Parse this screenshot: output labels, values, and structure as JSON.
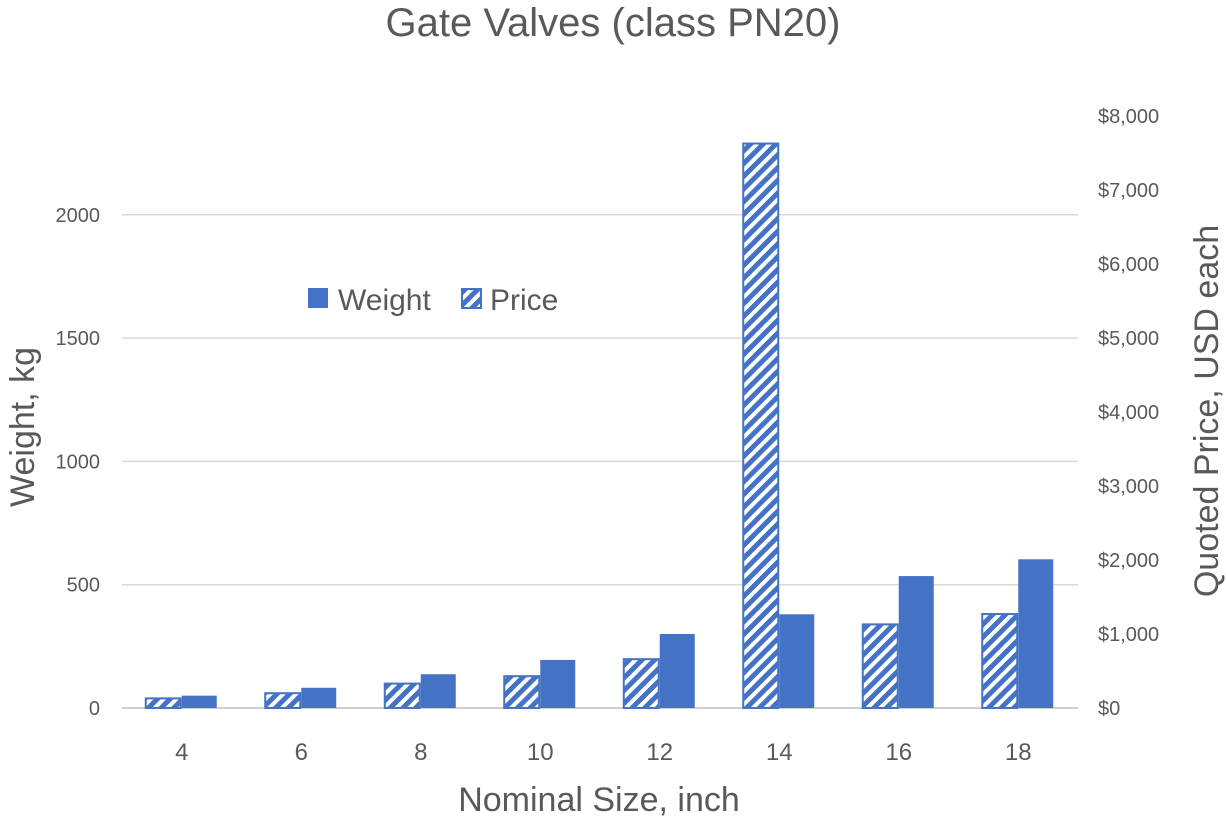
{
  "chart_data": {
    "type": "bar",
    "title": "Gate Valves (class PN20)",
    "xlabel": "Nominal Size, inch",
    "ylabel": "Weight, kg",
    "y2label": "Quoted Price, USD each",
    "categories": [
      "4",
      "6",
      "8",
      "10",
      "12",
      "14",
      "16",
      "18"
    ],
    "series": [
      {
        "name": "Price",
        "axis": "right",
        "pattern": "hatched",
        "color": "#4472C4",
        "values": [
          130,
          200,
          330,
          430,
          660,
          7630,
          1130,
          1270
        ]
      },
      {
        "name": "Weight",
        "axis": "left",
        "pattern": "solid",
        "color": "#4472C4",
        "values": [
          50,
          82,
          137,
          195,
          300,
          380,
          535,
          603
        ]
      }
    ],
    "legend_order": [
      "Weight",
      "Price"
    ],
    "ylim": [
      0,
      2400
    ],
    "y_ticks": [
      0,
      500,
      1000,
      1500,
      2000
    ],
    "y_tick_labels": [
      "0",
      "500",
      "1000",
      "1500",
      "2000"
    ],
    "y2lim": [
      0,
      8000
    ],
    "y2_ticks": [
      0,
      1000,
      2000,
      3000,
      4000,
      5000,
      6000,
      7000,
      8000
    ],
    "y2_tick_labels": [
      "$0",
      "$1,000",
      "$2,000",
      "$3,000",
      "$4,000",
      "$5,000",
      "$6,000",
      "$7,000",
      "$8,000"
    ],
    "grid": true,
    "legend_position": "top-left inside"
  }
}
